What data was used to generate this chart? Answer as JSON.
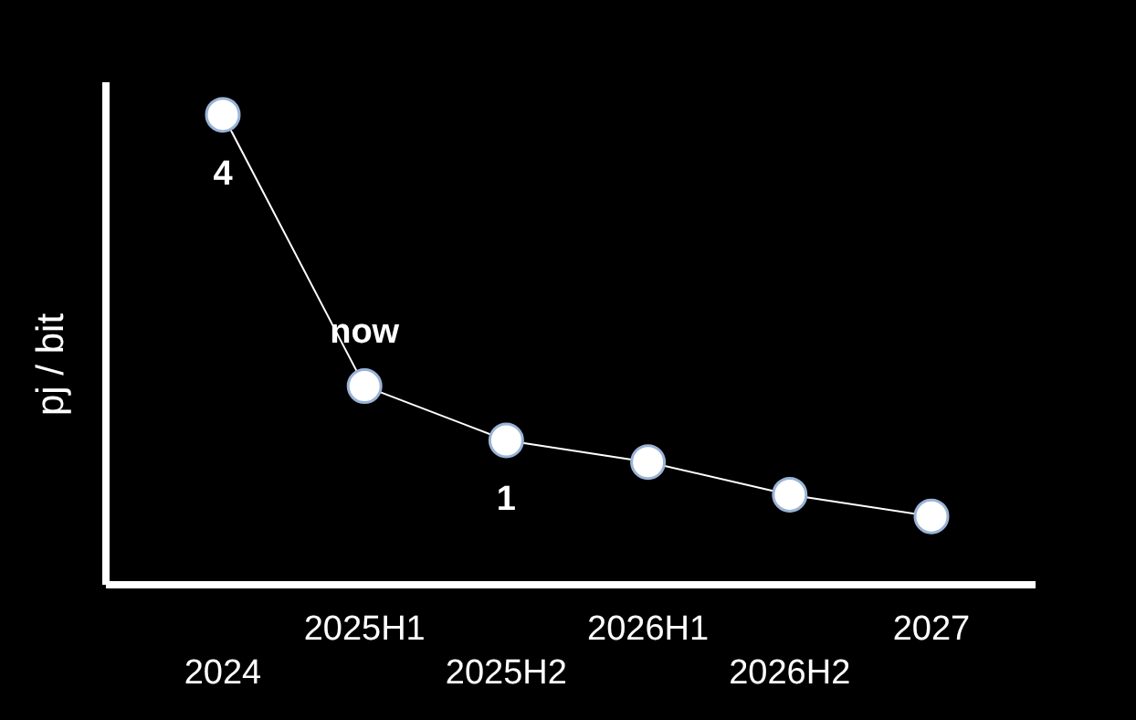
{
  "chart_data": {
    "type": "line",
    "ylabel": "pj / bit",
    "ylim": [
      -0.33,
      4.3
    ],
    "tick_labels": "x",
    "categories": [
      "2024",
      "2025H1",
      "2025H2",
      "2026H1",
      "2026H2",
      "2027"
    ],
    "series": [
      {
        "color": "#ffffff",
        "values": [
          4,
          1.5,
          1,
          0.8,
          0.5,
          0.3
        ],
        "value_labels": [
          "4",
          null,
          "1",
          null,
          null,
          null
        ]
      }
    ],
    "marker": "circle",
    "line_style": "solid",
    "grid": false,
    "legend": false,
    "annotations": [
      {
        "text": "now",
        "x": "2025H1",
        "y": 1.5
      }
    ]
  }
}
